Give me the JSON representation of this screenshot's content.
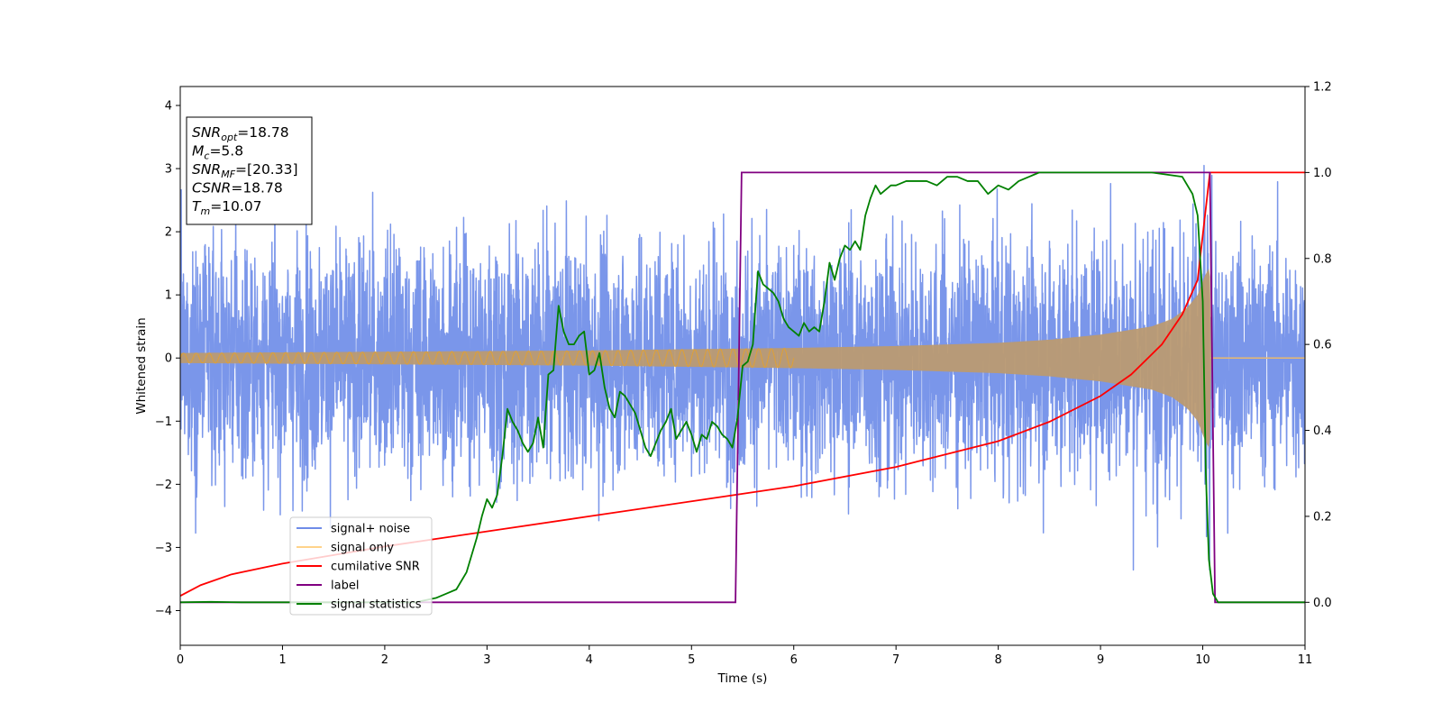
{
  "chart_data": {
    "type": "line",
    "xlabel": "Time (s)",
    "ylabel_left": "Whitened strain",
    "ylabel_right": "",
    "xlim": [
      0,
      11
    ],
    "ylim_left": [
      -4.55,
      4.3
    ],
    "ylim_right": [
      -0.1,
      1.2
    ],
    "x_ticks": [
      "0",
      "1",
      "2",
      "3",
      "4",
      "5",
      "6",
      "7",
      "8",
      "9",
      "10",
      "11"
    ],
    "y_ticks_left": [
      "−4",
      "−3",
      "−2",
      "−1",
      "0",
      "1",
      "2",
      "3",
      "4"
    ],
    "y_ticks_right": [
      "0.0",
      "0.2",
      "0.4",
      "0.6",
      "0.8",
      "1.0",
      "1.2"
    ],
    "grid": false,
    "legend_position": "lower-left",
    "annotation": {
      "lines": [
        {
          "label": "SNR",
          "sub": "opt",
          "value": "=18.78"
        },
        {
          "label": "M",
          "sub": "c",
          "value": "=5.8"
        },
        {
          "label": "SNR",
          "sub": "MF",
          "value": "=[20.33]"
        },
        {
          "label": "CSNR",
          "sub": "",
          "value": "=18.78"
        },
        {
          "label": "T",
          "sub": "m",
          "value": "=10.07"
        }
      ]
    },
    "series": [
      {
        "name": "signal+ noise",
        "axis": "left",
        "color": "#4169e1",
        "description_only": true,
        "noise_std": 1.0,
        "x_range": [
          0,
          11
        ]
      },
      {
        "name": "signal only",
        "axis": "left",
        "color": "#ffa500",
        "envelope": {
          "x": [
            0,
            2,
            4,
            6,
            7,
            8,
            8.5,
            9,
            9.5,
            9.7,
            9.85,
            9.95,
            10.02,
            10.07,
            10.08,
            11
          ],
          "amplitude": [
            0.08,
            0.1,
            0.12,
            0.16,
            0.19,
            0.24,
            0.29,
            0.37,
            0.5,
            0.62,
            0.8,
            1.0,
            1.3,
            1.45,
            0.0,
            0.0
          ]
        }
      },
      {
        "name": "cumilative SNR",
        "axis": "right",
        "color": "#ff0000",
        "x": [
          0,
          0.2,
          0.5,
          1,
          1.5,
          2,
          3,
          4,
          5,
          6,
          7,
          8,
          8.5,
          9,
          9.3,
          9.6,
          9.8,
          9.95,
          10.07,
          10.1,
          11
        ],
        "y": [
          0.015,
          0.04,
          0.065,
          0.09,
          0.11,
          0.13,
          0.165,
          0.2,
          0.235,
          0.27,
          0.315,
          0.375,
          0.42,
          0.48,
          0.53,
          0.6,
          0.67,
          0.75,
          1.0,
          1.0,
          1.0
        ]
      },
      {
        "name": "label",
        "axis": "right",
        "color": "#800080",
        "x": [
          0,
          5.43,
          5.49,
          10.07,
          10.12,
          11
        ],
        "y": [
          0.0,
          0.0,
          1.0,
          1.0,
          0.0,
          0.0
        ]
      },
      {
        "name": "signal statistics",
        "axis": "right",
        "color": "#008000",
        "x": [
          0,
          0.3,
          0.6,
          1,
          1.5,
          2,
          2.3,
          2.5,
          2.6,
          2.7,
          2.8,
          2.9,
          2.95,
          3.0,
          3.05,
          3.1,
          3.15,
          3.2,
          3.25,
          3.3,
          3.35,
          3.4,
          3.45,
          3.5,
          3.55,
          3.6,
          3.65,
          3.7,
          3.75,
          3.8,
          3.85,
          3.9,
          3.95,
          4.0,
          4.05,
          4.1,
          4.15,
          4.2,
          4.25,
          4.3,
          4.35,
          4.4,
          4.45,
          4.5,
          4.55,
          4.6,
          4.65,
          4.7,
          4.75,
          4.8,
          4.85,
          4.9,
          4.95,
          5.0,
          5.05,
          5.1,
          5.15,
          5.2,
          5.25,
          5.3,
          5.35,
          5.4,
          5.45,
          5.5,
          5.55,
          5.6,
          5.65,
          5.7,
          5.75,
          5.8,
          5.85,
          5.9,
          5.95,
          6.0,
          6.05,
          6.1,
          6.15,
          6.2,
          6.25,
          6.3,
          6.35,
          6.4,
          6.45,
          6.5,
          6.55,
          6.6,
          6.65,
          6.7,
          6.75,
          6.8,
          6.85,
          6.9,
          6.95,
          7.0,
          7.1,
          7.2,
          7.3,
          7.4,
          7.5,
          7.6,
          7.7,
          7.8,
          7.9,
          8.0,
          8.1,
          8.2,
          8.3,
          8.4,
          8.5,
          9.0,
          9.5,
          9.8,
          9.9,
          9.95,
          10.0,
          10.03,
          10.06,
          10.1,
          10.15,
          10.2,
          11
        ],
        "y": [
          0.0,
          0.001,
          0.0,
          0.0,
          0.0,
          0.0,
          0.0,
          0.01,
          0.02,
          0.03,
          0.07,
          0.15,
          0.2,
          0.24,
          0.22,
          0.25,
          0.34,
          0.45,
          0.42,
          0.4,
          0.37,
          0.35,
          0.37,
          0.43,
          0.36,
          0.53,
          0.54,
          0.69,
          0.63,
          0.6,
          0.6,
          0.62,
          0.63,
          0.53,
          0.54,
          0.58,
          0.5,
          0.45,
          0.43,
          0.49,
          0.48,
          0.46,
          0.44,
          0.4,
          0.36,
          0.34,
          0.37,
          0.4,
          0.42,
          0.45,
          0.38,
          0.4,
          0.42,
          0.39,
          0.35,
          0.39,
          0.38,
          0.42,
          0.41,
          0.39,
          0.38,
          0.36,
          0.43,
          0.55,
          0.56,
          0.6,
          0.77,
          0.74,
          0.73,
          0.72,
          0.7,
          0.66,
          0.64,
          0.63,
          0.62,
          0.65,
          0.63,
          0.64,
          0.63,
          0.7,
          0.79,
          0.75,
          0.8,
          0.83,
          0.82,
          0.84,
          0.82,
          0.9,
          0.94,
          0.97,
          0.95,
          0.96,
          0.97,
          0.97,
          0.98,
          0.98,
          0.98,
          0.97,
          0.99,
          0.99,
          0.98,
          0.98,
          0.95,
          0.97,
          0.96,
          0.98,
          0.99,
          1.0,
          1.0,
          1.0,
          1.0,
          0.99,
          0.95,
          0.9,
          0.7,
          0.3,
          0.1,
          0.02,
          0.0,
          0.0,
          0.0
        ]
      }
    ]
  }
}
